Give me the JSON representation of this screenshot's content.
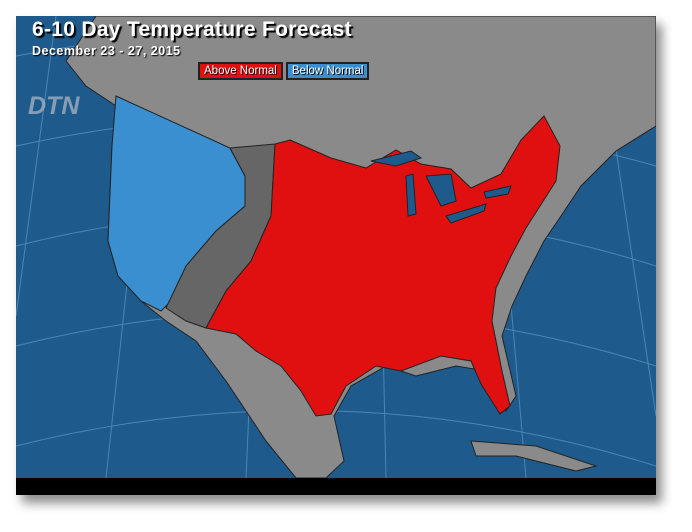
{
  "title": "6-10 Day Temperature Forecast",
  "subtitle": "December 23 - 27, 2015",
  "legend": [
    {
      "label": "Above Normal",
      "color": "#e01010"
    },
    {
      "label": "Below Normal",
      "color": "#3a8fd0"
    }
  ],
  "logo": "DTN",
  "colors": {
    "ocean": "#1e5b8c",
    "land": "#8a8a8a",
    "near_normal": "#666666"
  }
}
